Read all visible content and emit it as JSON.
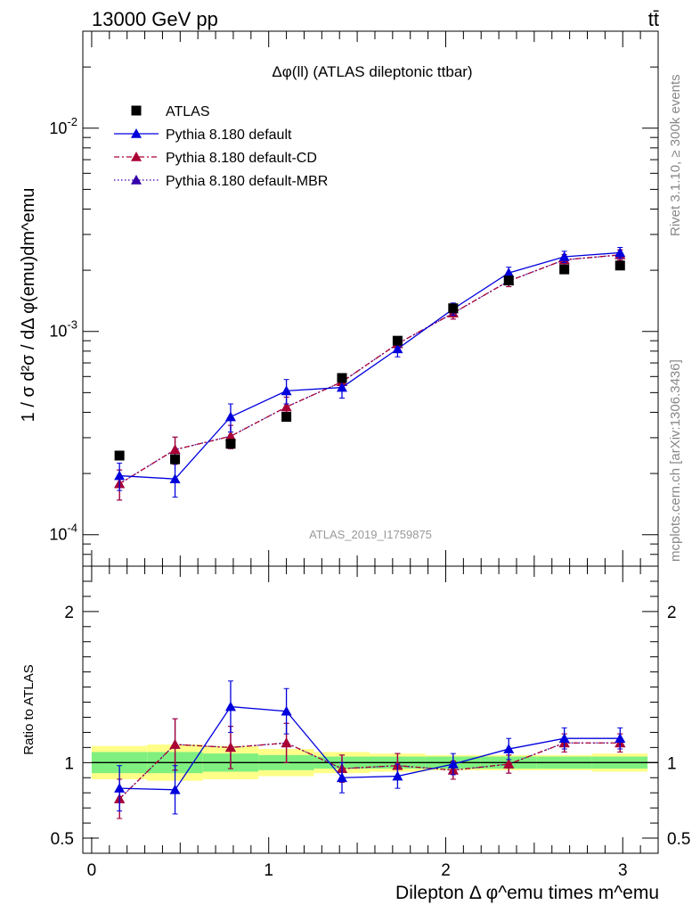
{
  "header": {
    "energy_label": "13000 GeV pp",
    "process_label": "tt̄"
  },
  "side_labels": {
    "rivet_label": "Rivet 3.1.10, ≥ 300k events",
    "mcplots_label": "mcplots.cern.ch [arXiv:1306.3436]"
  },
  "colors": {
    "data": "#000000",
    "default": "#0000dd",
    "cd": "#aa0033",
    "mbr": "#3300aa",
    "band_inner": "#7ff07f",
    "band_outer": "#ffff88"
  },
  "chart_data": {
    "type": "line",
    "title": "Δφ(ll) (ATLAS dileptonic ttbar)",
    "analysis_label": "ATLAS_2019_I1759875",
    "xlabel": "Dilepton Δ φ^emu times m^emu",
    "ylabel": "1 / σ  d²σ / dΔ φ(emu)dm^emu",
    "x": [
      0.157,
      0.471,
      0.785,
      1.1,
      1.414,
      1.728,
      2.042,
      2.356,
      2.67,
      2.985
    ],
    "xlim": [
      -0.05,
      3.2
    ],
    "ylim": [
      7e-05,
      0.03
    ],
    "yscale": "log",
    "xticks": [
      "0",
      "1",
      "2",
      "3"
    ],
    "yticks": [
      "10^-4",
      "10^-3",
      "10^-2"
    ],
    "legend_position": "top-left",
    "series": [
      {
        "name": "ATLAS",
        "style": "data",
        "values": [
          0.000245,
          0.000235,
          0.00028,
          0.00038,
          0.00059,
          0.0009,
          0.0013,
          0.00178,
          0.00202,
          0.00211
        ]
      },
      {
        "name": "Pythia 8.180 default",
        "style": "default",
        "values": [
          0.000195,
          0.000188,
          0.00038,
          0.00051,
          0.00053,
          0.00082,
          0.00129,
          0.00194,
          0.00233,
          0.00244
        ],
        "errors": [
          3e-05,
          3.5e-05,
          6e-05,
          7e-05,
          6e-05,
          7e-05,
          9e-05,
          0.00013,
          0.00015,
          0.00015
        ]
      },
      {
        "name": "Pythia 8.180 default-CD",
        "style": "cd",
        "values": [
          0.000178,
          0.000262,
          0.000305,
          0.000425,
          0.000565,
          0.00087,
          0.00123,
          0.00177,
          0.00225,
          0.00238
        ],
        "errors": [
          3e-05,
          4e-05,
          4e-05,
          5e-05,
          5e-05,
          7e-05,
          8e-05,
          0.00011,
          0.00014,
          0.00014
        ]
      },
      {
        "name": "Pythia 8.180 default-MBR",
        "style": "mbr",
        "values": [
          0.000178,
          0.000262,
          0.000305,
          0.000425,
          0.000565,
          0.00087,
          0.00123,
          0.00177,
          0.00225,
          0.00238
        ],
        "errors": [
          3e-05,
          4e-05,
          4e-05,
          5e-05,
          5e-05,
          7e-05,
          8e-05,
          0.00011,
          0.00014,
          0.00014
        ]
      }
    ],
    "ratio": {
      "ylabel": "Ratio to ATLAS",
      "ylim": [
        0.4,
        2.3
      ],
      "yticks": [
        "0.5",
        "1",
        "2"
      ],
      "band_edges": [
        0,
        0.314,
        0.628,
        0.942,
        1.256,
        1.57,
        1.884,
        2.198,
        2.512,
        2.826,
        3.14
      ],
      "band_inner": [
        0.07,
        0.07,
        0.06,
        0.05,
        0.04,
        0.04,
        0.04,
        0.04,
        0.04,
        0.04
      ],
      "band_outer": [
        0.11,
        0.12,
        0.11,
        0.09,
        0.07,
        0.06,
        0.05,
        0.05,
        0.05,
        0.06
      ],
      "series": [
        {
          "name": "Pythia 8.180 default",
          "style": "default",
          "values": [
            0.83,
            0.82,
            1.37,
            1.34,
            0.9,
            0.91,
            0.99,
            1.09,
            1.16,
            1.16
          ],
          "errors": [
            0.15,
            0.16,
            0.17,
            0.15,
            0.1,
            0.08,
            0.07,
            0.07,
            0.07,
            0.07
          ]
        },
        {
          "name": "Pythia 8.180 default-CD",
          "style": "cd",
          "values": [
            0.76,
            1.12,
            1.1,
            1.13,
            0.96,
            0.98,
            0.95,
            0.99,
            1.13,
            1.13
          ],
          "errors": [
            0.13,
            0.17,
            0.14,
            0.13,
            0.09,
            0.08,
            0.06,
            0.06,
            0.06,
            0.06
          ]
        },
        {
          "name": "Pythia 8.180 default-MBR",
          "style": "mbr",
          "values": [
            0.76,
            1.12,
            1.1,
            1.13,
            0.96,
            0.98,
            0.95,
            0.99,
            1.13,
            1.13
          ],
          "errors": [
            0.13,
            0.17,
            0.14,
            0.13,
            0.09,
            0.08,
            0.06,
            0.06,
            0.06,
            0.06
          ]
        }
      ]
    }
  }
}
